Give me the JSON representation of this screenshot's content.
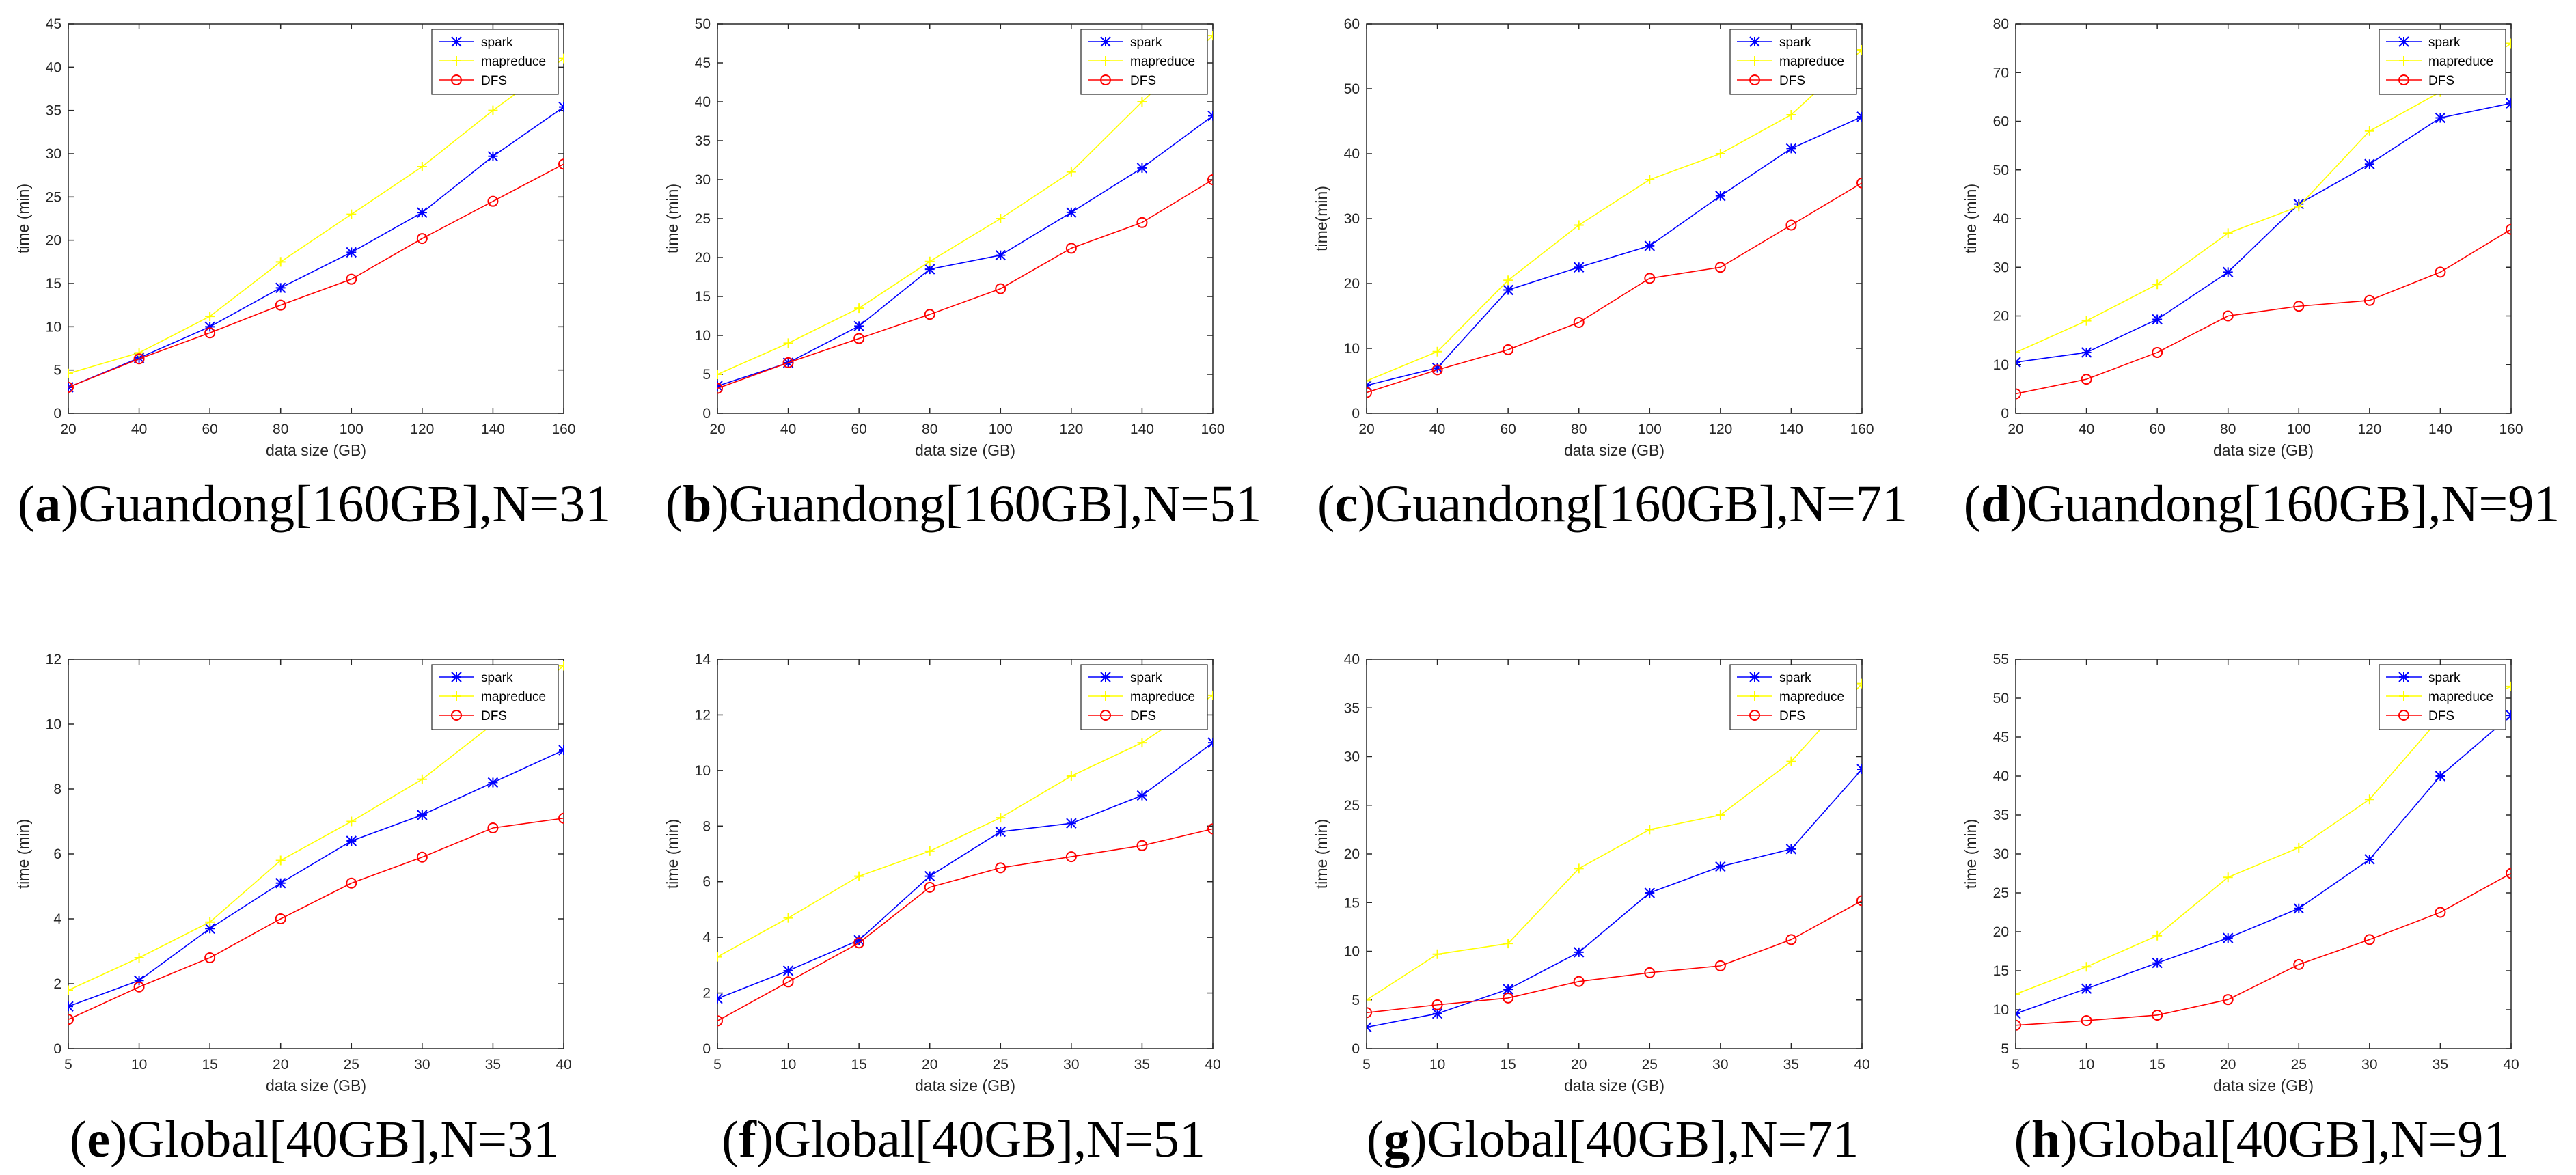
{
  "figure": {
    "open_paren": "(",
    "close_paren": ")"
  },
  "styles": {
    "spark": {
      "color": "#0000ff",
      "marker": "star"
    },
    "mapreduce": {
      "color": "#ffff00",
      "marker": "cross"
    },
    "DFS": {
      "color": "#ff0000",
      "marker": "circle"
    }
  },
  "chart_data": [
    {
      "type": "line",
      "letter": "a",
      "label": "Guandong[160GB],N=31",
      "xlabel": "data size (GB)",
      "ylabel": "time (min)",
      "x": [
        20,
        40,
        60,
        80,
        100,
        120,
        140,
        160
      ],
      "xlim": [
        20,
        160
      ],
      "ylim": [
        0,
        45
      ],
      "xticks": [
        20,
        40,
        60,
        80,
        100,
        120,
        140,
        160
      ],
      "yticks": [
        0,
        5,
        10,
        15,
        20,
        25,
        30,
        35,
        40,
        45
      ],
      "legend": "top-right",
      "series": [
        {
          "name": "spark",
          "values": [
            3.0,
            6.4,
            10.0,
            14.5,
            18.6,
            23.2,
            29.7,
            35.4
          ]
        },
        {
          "name": "mapreduce",
          "values": [
            4.6,
            7.0,
            11.2,
            17.5,
            23.0,
            28.5,
            35.0,
            41.0
          ]
        },
        {
          "name": "DFS",
          "values": [
            3.0,
            6.3,
            9.3,
            12.5,
            15.5,
            20.2,
            24.5,
            28.8
          ]
        }
      ]
    },
    {
      "type": "line",
      "letter": "b",
      "label": "Guandong[160GB],N=51",
      "xlabel": "data size (GB)",
      "ylabel": "time (min)",
      "x": [
        20,
        40,
        60,
        80,
        100,
        120,
        140,
        160
      ],
      "xlim": [
        20,
        160
      ],
      "ylim": [
        0,
        50
      ],
      "xticks": [
        20,
        40,
        60,
        80,
        100,
        120,
        140,
        160
      ],
      "yticks": [
        0,
        5,
        10,
        15,
        20,
        25,
        30,
        35,
        40,
        45,
        50
      ],
      "legend": "top-right",
      "series": [
        {
          "name": "spark",
          "values": [
            3.5,
            6.5,
            11.2,
            18.5,
            20.3,
            25.8,
            31.5,
            38.2
          ]
        },
        {
          "name": "mapreduce",
          "values": [
            5.0,
            9.0,
            13.5,
            19.5,
            25.0,
            31.0,
            40.0,
            48.5
          ]
        },
        {
          "name": "DFS",
          "values": [
            3.2,
            6.5,
            9.6,
            12.7,
            16.0,
            21.2,
            24.5,
            30.0
          ]
        }
      ]
    },
    {
      "type": "line",
      "letter": "c",
      "label": "Guandong[160GB],N=71",
      "xlabel": "data size (GB)",
      "ylabel": "time(min)",
      "x": [
        20,
        40,
        60,
        80,
        100,
        120,
        140,
        160
      ],
      "xlim": [
        20,
        160
      ],
      "ylim": [
        0,
        60
      ],
      "xticks": [
        20,
        40,
        60,
        80,
        100,
        120,
        140,
        160
      ],
      "yticks": [
        0,
        10,
        20,
        30,
        40,
        50,
        60
      ],
      "legend": "top-right",
      "series": [
        {
          "name": "spark",
          "values": [
            4.3,
            7.0,
            19.0,
            22.5,
            25.8,
            33.5,
            40.8,
            45.7
          ]
        },
        {
          "name": "mapreduce",
          "values": [
            5.0,
            9.5,
            20.5,
            29.0,
            36.0,
            40.0,
            46.0,
            56.0
          ]
        },
        {
          "name": "DFS",
          "values": [
            3.2,
            6.7,
            9.8,
            14.0,
            20.8,
            22.5,
            29.0,
            35.5
          ]
        }
      ]
    },
    {
      "type": "line",
      "letter": "d",
      "label": "Guandong[160GB],N=91",
      "xlabel": "data size (GB)",
      "ylabel": "time (min)",
      "x": [
        20,
        40,
        60,
        80,
        100,
        120,
        140,
        160
      ],
      "xlim": [
        20,
        160
      ],
      "ylim": [
        0,
        80
      ],
      "xticks": [
        20,
        40,
        60,
        80,
        100,
        120,
        140,
        160
      ],
      "yticks": [
        0,
        10,
        20,
        30,
        40,
        50,
        60,
        70,
        80
      ],
      "legend": "top-right",
      "series": [
        {
          "name": "spark",
          "values": [
            10.5,
            12.5,
            19.3,
            29.0,
            43.0,
            51.2,
            60.7,
            63.7
          ]
        },
        {
          "name": "mapreduce",
          "values": [
            12.5,
            19.0,
            26.5,
            37.0,
            42.5,
            58.0,
            66.0,
            76.0
          ]
        },
        {
          "name": "DFS",
          "values": [
            4.0,
            7.0,
            12.5,
            20.0,
            22.0,
            23.2,
            29.0,
            37.8
          ]
        }
      ]
    },
    {
      "type": "line",
      "letter": "e",
      "label": "Global[40GB],N=31",
      "xlabel": "data size (GB)",
      "ylabel": "time (min)",
      "x": [
        5,
        10,
        15,
        20,
        25,
        30,
        35,
        40
      ],
      "xlim": [
        5,
        40
      ],
      "ylim": [
        0,
        12
      ],
      "xticks": [
        5,
        10,
        15,
        20,
        25,
        30,
        35,
        40
      ],
      "yticks": [
        0,
        2,
        4,
        6,
        8,
        10,
        12
      ],
      "legend": "top-right",
      "series": [
        {
          "name": "spark",
          "values": [
            1.3,
            2.1,
            3.7,
            5.1,
            6.4,
            7.2,
            8.2,
            9.2
          ]
        },
        {
          "name": "mapreduce",
          "values": [
            1.8,
            2.8,
            3.9,
            5.8,
            7.0,
            8.3,
            10.0,
            11.8
          ]
        },
        {
          "name": "DFS",
          "values": [
            0.9,
            1.9,
            2.8,
            4.0,
            5.1,
            5.9,
            6.8,
            7.1
          ]
        }
      ]
    },
    {
      "type": "line",
      "letter": "f",
      "label": "Global[40GB],N=51",
      "xlabel": "data size (GB)",
      "ylabel": "time (min)",
      "x": [
        5,
        10,
        15,
        20,
        25,
        30,
        35,
        40
      ],
      "xlim": [
        5,
        40
      ],
      "ylim": [
        0,
        14
      ],
      "xticks": [
        5,
        10,
        15,
        20,
        25,
        30,
        35,
        40
      ],
      "yticks": [
        0,
        2,
        4,
        6,
        8,
        10,
        12,
        14
      ],
      "legend": "top-right",
      "series": [
        {
          "name": "spark",
          "values": [
            1.8,
            2.8,
            3.9,
            6.2,
            7.8,
            8.1,
            9.1,
            11.0
          ]
        },
        {
          "name": "mapreduce",
          "values": [
            3.3,
            4.7,
            6.2,
            7.1,
            8.3,
            9.8,
            11.0,
            12.7
          ]
        },
        {
          "name": "DFS",
          "values": [
            1.0,
            2.4,
            3.8,
            5.8,
            6.5,
            6.9,
            7.3,
            7.9
          ]
        }
      ]
    },
    {
      "type": "line",
      "letter": "g",
      "label": "Global[40GB],N=71",
      "xlabel": "data size (GB)",
      "ylabel": "time (min)",
      "x": [
        5,
        10,
        15,
        20,
        25,
        30,
        35,
        40
      ],
      "xlim": [
        5,
        40
      ],
      "ylim": [
        0,
        40
      ],
      "xticks": [
        5,
        10,
        15,
        20,
        25,
        30,
        35,
        40
      ],
      "yticks": [
        0,
        5,
        10,
        15,
        20,
        25,
        30,
        35,
        40
      ],
      "legend": "top-right",
      "series": [
        {
          "name": "spark",
          "values": [
            2.2,
            3.6,
            6.1,
            9.9,
            16.0,
            18.7,
            20.5,
            28.7
          ]
        },
        {
          "name": "mapreduce",
          "values": [
            5.0,
            9.7,
            10.8,
            18.5,
            22.5,
            24.0,
            29.5,
            37.5
          ]
        },
        {
          "name": "DFS",
          "values": [
            3.7,
            4.5,
            5.2,
            6.9,
            7.8,
            8.5,
            11.2,
            15.2
          ]
        }
      ]
    },
    {
      "type": "line",
      "letter": "h",
      "label": "Global[40GB],N=91",
      "xlabel": "data size (GB)",
      "ylabel": "time (min)",
      "x": [
        5,
        10,
        15,
        20,
        25,
        30,
        35,
        40
      ],
      "xlim": [
        5,
        40
      ],
      "ylim": [
        5,
        55
      ],
      "xticks": [
        5,
        10,
        15,
        20,
        25,
        30,
        35,
        40
      ],
      "yticks": [
        5,
        10,
        15,
        20,
        25,
        30,
        35,
        40,
        45,
        50,
        55
      ],
      "legend": "top-right",
      "series": [
        {
          "name": "spark",
          "values": [
            9.5,
            12.7,
            16.0,
            19.2,
            23.0,
            29.3,
            40.0,
            47.8
          ]
        },
        {
          "name": "mapreduce",
          "values": [
            12.0,
            15.5,
            19.5,
            27.0,
            30.8,
            37.0,
            47.5,
            51.5
          ]
        },
        {
          "name": "DFS",
          "values": [
            8.0,
            8.6,
            9.3,
            11.3,
            15.8,
            19.0,
            22.5,
            27.5
          ]
        }
      ]
    }
  ]
}
